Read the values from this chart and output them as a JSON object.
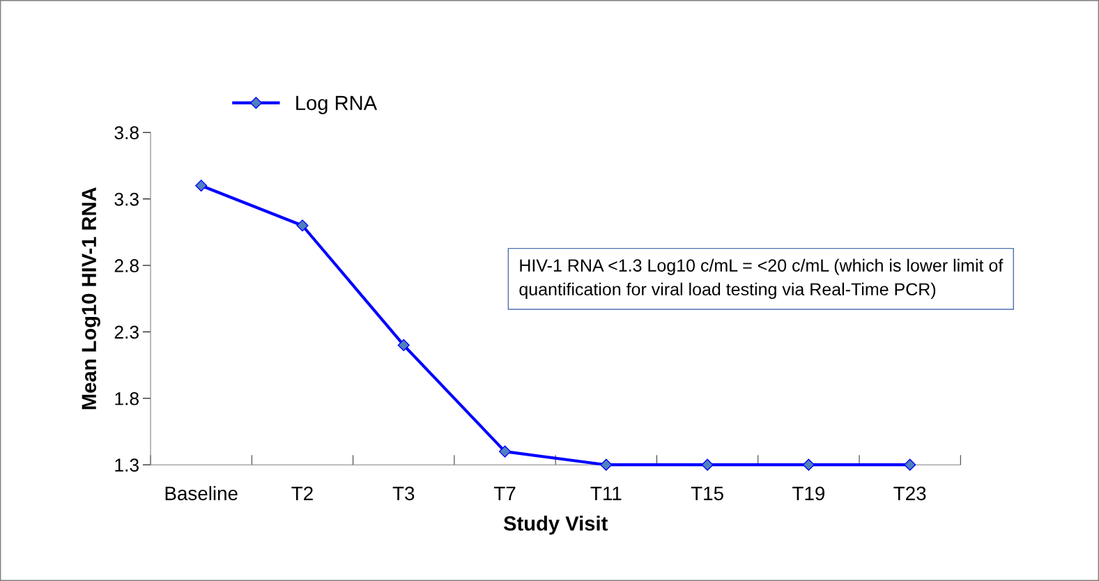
{
  "chart_data": {
    "type": "line",
    "xlabel": "Study Visit",
    "ylabel": "Mean Log10 HIV-1 RNA",
    "categories": [
      "Baseline",
      "T2",
      "T3",
      "T7",
      "T11",
      "T15",
      "T19",
      "T23"
    ],
    "series": [
      {
        "name": "Log RNA",
        "color": "#0000ff",
        "values": [
          3.4,
          3.1,
          2.2,
          1.4,
          1.3,
          1.3,
          1.3,
          1.3
        ]
      }
    ],
    "ylim": [
      1.3,
      3.8
    ],
    "yticks": [
      1.3,
      1.8,
      2.3,
      2.8,
      3.3,
      3.8
    ],
    "marker": "diamond",
    "line_style": "solid",
    "grid": false,
    "legend": "top left",
    "annotations": [
      "HIV-1 RNA <1.3 Log10 c/mL = <20 c/mL (which is lower limit of\nquantification for viral load testing via Real-Time PCR)"
    ]
  }
}
